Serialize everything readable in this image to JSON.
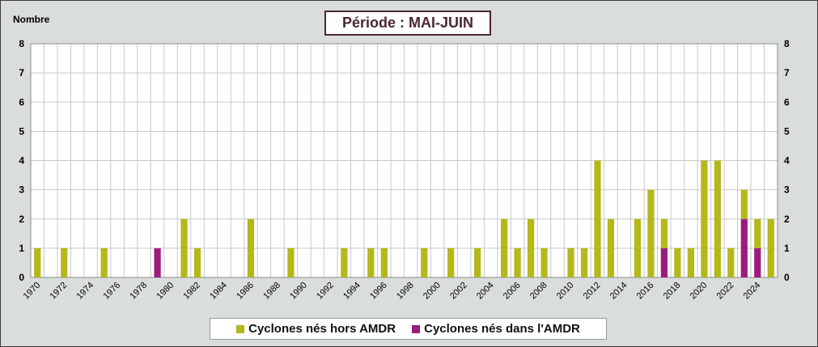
{
  "chart_data": {
    "type": "bar",
    "stacked": true,
    "title": "Période : MAI-JUIN",
    "ylabel": "Nombre",
    "ylim": [
      0,
      8
    ],
    "yticks": [
      0,
      1,
      2,
      3,
      4,
      5,
      6,
      7,
      8
    ],
    "grid": true,
    "legend_position": "bottom",
    "categories": [
      1970,
      1971,
      1972,
      1973,
      1974,
      1975,
      1976,
      1977,
      1978,
      1979,
      1980,
      1981,
      1982,
      1983,
      1984,
      1985,
      1986,
      1987,
      1988,
      1989,
      1990,
      1991,
      1992,
      1993,
      1994,
      1995,
      1996,
      1997,
      1998,
      1999,
      2000,
      2001,
      2002,
      2003,
      2004,
      2005,
      2006,
      2007,
      2008,
      2009,
      2010,
      2011,
      2012,
      2013,
      2014,
      2015,
      2016,
      2017,
      2018,
      2019,
      2020,
      2021,
      2022,
      2023,
      2024,
      2025
    ],
    "x_tick_labels": [
      "1970",
      "1972",
      "1974",
      "1976",
      "1978",
      "1980",
      "1982",
      "1984",
      "1986",
      "1988",
      "1990",
      "1992",
      "1994",
      "1996",
      "1998",
      "2000",
      "2002",
      "2004",
      "2006",
      "2008",
      "2010",
      "2012",
      "2014",
      "2016",
      "2018",
      "2020",
      "2022",
      "2024"
    ],
    "series": [
      {
        "name": "Cyclones nés dans l'AMDR",
        "color": "#9b1c7e",
        "values": [
          0,
          0,
          0,
          0,
          0,
          0,
          0,
          0,
          0,
          1,
          0,
          0,
          0,
          0,
          0,
          0,
          0,
          0,
          0,
          0,
          0,
          0,
          0,
          0,
          0,
          0,
          0,
          0,
          0,
          0,
          0,
          0,
          0,
          0,
          0,
          0,
          0,
          0,
          0,
          0,
          0,
          0,
          0,
          0,
          0,
          0,
          0,
          1,
          0,
          0,
          0,
          0,
          0,
          2,
          1,
          0
        ]
      },
      {
        "name": "Cyclones nés hors AMDR",
        "color": "#b4b81a",
        "values": [
          1,
          0,
          1,
          0,
          0,
          1,
          0,
          0,
          0,
          0,
          0,
          2,
          1,
          0,
          0,
          0,
          2,
          0,
          0,
          1,
          0,
          0,
          0,
          1,
          0,
          1,
          1,
          0,
          0,
          1,
          0,
          1,
          0,
          1,
          0,
          2,
          1,
          2,
          1,
          0,
          1,
          1,
          4,
          2,
          0,
          2,
          3,
          1,
          1,
          1,
          4,
          4,
          1,
          1,
          1,
          2
        ]
      }
    ]
  },
  "legend": {
    "items": [
      {
        "label": "Cyclones nés hors AMDR",
        "color": "#b4b81a"
      },
      {
        "label": "Cyclones nés dans l'AMDR",
        "color": "#9b1c7e"
      }
    ]
  }
}
